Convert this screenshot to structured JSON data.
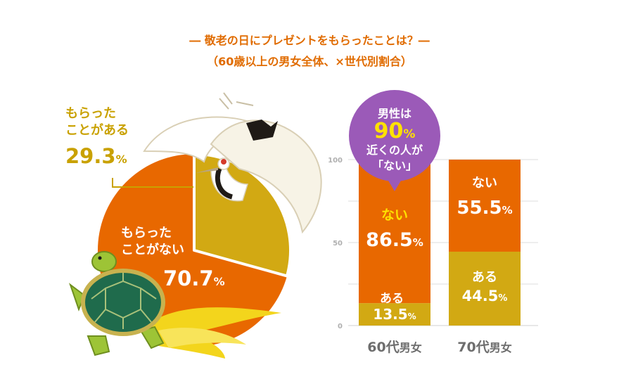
{
  "header": {
    "title": "― 敬老の日にプレゼントをもらったことは？―",
    "subtitle": "（60歳以上の男女全体、×世代別割合）"
  },
  "colors": {
    "orange": "#e86800",
    "mustard": "#d2a913",
    "white": "#ffffff",
    "label_yellow": "#ffe100",
    "bubble": "#9b5ab8",
    "text_olive": "#c9a100"
  },
  "callout": {
    "line1": "男性は",
    "number": "90",
    "unit": "%",
    "line3": "近くの人が",
    "line4": "「ない」"
  },
  "chart_data": [
    {
      "type": "pie",
      "slices": [
        {
          "label_line1": "もらった",
          "label_line2": "ことがある",
          "value": 29.3,
          "value_text": "29.3",
          "unit": "%"
        },
        {
          "label_line1": "もらった",
          "label_line2": "ことがない",
          "value": 70.7,
          "value_text": "70.7",
          "unit": "%"
        }
      ]
    },
    {
      "type": "bar",
      "stacked": true,
      "categories": [
        {
          "num": "60代",
          "rest": "男女"
        },
        {
          "num": "70代",
          "rest": "男女"
        }
      ],
      "ylim": [
        0,
        100
      ],
      "yticks": [
        "0",
        "50",
        "100"
      ],
      "series": [
        {
          "name": "ある",
          "values": [
            13.5,
            44.5
          ],
          "value_texts": [
            "13.5",
            "44.5"
          ],
          "unit": "%"
        },
        {
          "name": "ない",
          "values": [
            86.5,
            55.5
          ],
          "value_texts": [
            "86.5",
            "55.5"
          ],
          "unit": "%"
        }
      ]
    }
  ]
}
